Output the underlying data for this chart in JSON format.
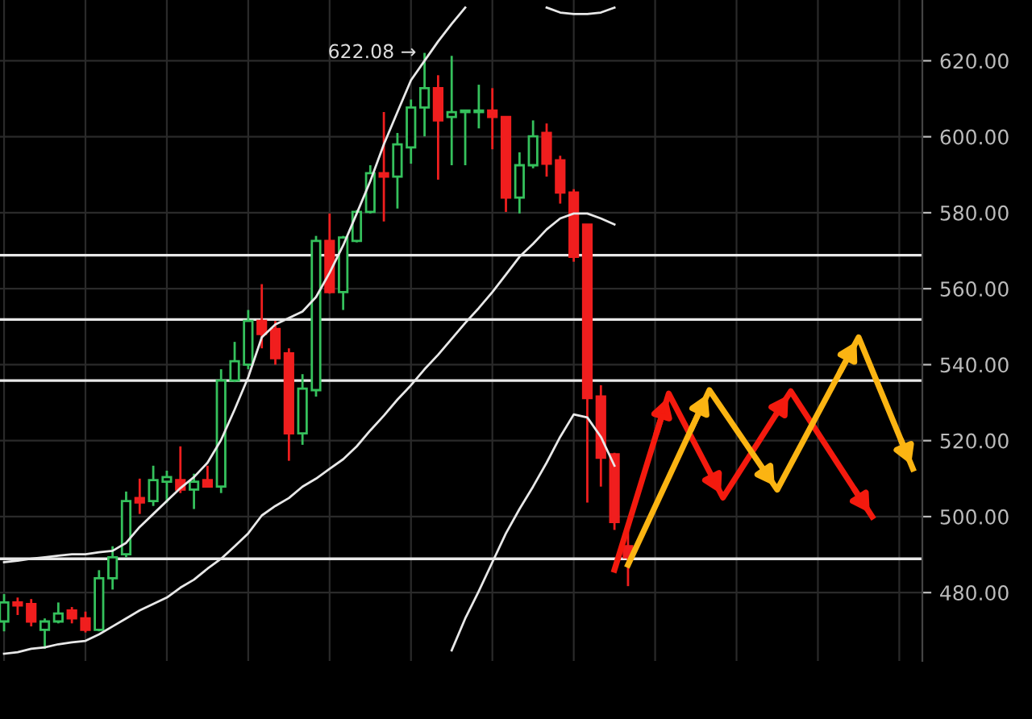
{
  "chart_data": {
    "type": "candlestick",
    "categories": [
      null,
      null,
      null,
      null,
      null,
      null,
      null,
      null,
      null,
      null,
      null,
      null,
      null,
      null,
      null,
      null,
      null,
      null,
      null,
      null,
      null,
      null,
      null,
      null,
      null,
      null,
      null,
      null,
      null,
      null,
      null,
      null,
      null,
      null,
      null,
      null,
      null,
      null,
      null,
      null,
      null,
      null,
      null,
      null,
      null,
      null,
      null,
      null,
      null,
      null,
      null,
      null,
      null,
      null,
      null,
      null,
      null,
      null,
      null,
      null,
      null,
      null,
      null,
      null,
      null,
      null,
      null,
      null,
      null
    ],
    "ohlc": [
      [
        472.4,
        479.6,
        469.8,
        477.4
      ],
      [
        477.4,
        478.7,
        474.1,
        476.6
      ],
      [
        477.0,
        478.3,
        471.1,
        472.4
      ],
      [
        470.2,
        473.2,
        465.2,
        472.4
      ],
      [
        472.4,
        477.4,
        471.9,
        474.5
      ],
      [
        475.3,
        476.2,
        471.9,
        473.2
      ],
      [
        473.2,
        475.0,
        469.5,
        470.2
      ],
      [
        470.2,
        485.9,
        469.8,
        483.8
      ],
      [
        483.8,
        492.2,
        480.8,
        489.3
      ],
      [
        490.1,
        506.6,
        489.3,
        504.1
      ],
      [
        504.9,
        510.0,
        500.7,
        503.7
      ],
      [
        504.1,
        513.4,
        502.8,
        509.6
      ],
      [
        509.2,
        512.1,
        503.7,
        510.4
      ],
      [
        509.6,
        518.5,
        506.2,
        507.1
      ],
      [
        507.1,
        511.3,
        502.0,
        509.2
      ],
      [
        509.6,
        513.4,
        507.9,
        507.9
      ],
      [
        507.9,
        538.8,
        506.2,
        535.8
      ],
      [
        535.8,
        546.0,
        535.4,
        540.9
      ],
      [
        540.0,
        554.4,
        538.8,
        551.5
      ],
      [
        551.5,
        561.2,
        544.3,
        548.1
      ],
      [
        549.4,
        551.5,
        540.0,
        541.7
      ],
      [
        543.0,
        544.3,
        514.7,
        521.9
      ],
      [
        521.9,
        537.5,
        518.9,
        533.7
      ],
      [
        533.3,
        573.9,
        531.6,
        572.6
      ],
      [
        572.6,
        579.8,
        558.7,
        559.1
      ],
      [
        559.1,
        573.9,
        554.4,
        573.5
      ],
      [
        572.6,
        580.7,
        572.2,
        580.2
      ],
      [
        580.2,
        592.5,
        579.8,
        590.4
      ],
      [
        590.4,
        606.5,
        577.7,
        589.5
      ],
      [
        589.5,
        601.0,
        581.1,
        598.0
      ],
      [
        597.2,
        609.8,
        592.9,
        607.7
      ],
      [
        607.7,
        622.08,
        600.1,
        612.8
      ],
      [
        612.8,
        616.2,
        588.7,
        604.3
      ],
      [
        605.2,
        621.3,
        592.5,
        606.5
      ],
      [
        606.5,
        606.9,
        592.5,
        606.9
      ],
      [
        606.5,
        613.7,
        602.2,
        606.9
      ],
      [
        606.9,
        612.8,
        596.7,
        605.2
      ],
      [
        605.2,
        605.2,
        580.2,
        584.0
      ],
      [
        584.0,
        595.9,
        579.8,
        592.5
      ],
      [
        592.5,
        604.3,
        591.7,
        600.1
      ],
      [
        601.0,
        603.5,
        589.5,
        592.9
      ],
      [
        593.8,
        595.0,
        582.4,
        585.3
      ],
      [
        585.3,
        586.2,
        567.1,
        568.4
      ],
      [
        576.9,
        576.9,
        503.7,
        531.2
      ],
      [
        531.6,
        534.6,
        507.9,
        515.5
      ],
      [
        516.4,
        516.8,
        496.5,
        498.6
      ],
      [
        492.2,
        497.0,
        481.7,
        489.3
      ],
      null,
      null,
      null,
      null,
      null,
      null,
      null,
      null,
      null,
      null,
      null,
      null,
      null,
      null,
      null,
      null,
      null,
      null,
      null,
      null,
      null,
      null
    ],
    "colors": [
      "#35c15c",
      "#f01e1e",
      "#f01e1e",
      "#35c15c",
      "#35c15c",
      "#f01e1e",
      "#f01e1e",
      "#35c15c",
      "#35c15c",
      "#35c15c",
      "#f01e1e",
      "#35c15c",
      "#35c15c",
      "#f01e1e",
      "#35c15c",
      "#f01e1e",
      "#35c15c",
      "#35c15c",
      "#35c15c",
      "#f01e1e",
      "#f01e1e",
      "#f01e1e",
      "#35c15c",
      "#35c15c",
      "#f01e1e",
      "#35c15c",
      "#35c15c",
      "#35c15c",
      "#f01e1e",
      "#35c15c",
      "#35c15c",
      "#35c15c",
      "#f01e1e",
      "#35c15c",
      "#35c15c",
      "#35c15c",
      "#f01e1e",
      "#f01e1e",
      "#35c15c",
      "#35c15c",
      "#f01e1e",
      "#f01e1e",
      "#f01e1e",
      "#f01e1e",
      "#f01e1e",
      "#f01e1e",
      "#f01e1e",
      null,
      null,
      null,
      null,
      null,
      null,
      null,
      null,
      null,
      null,
      null,
      null,
      null,
      null,
      null,
      null,
      null,
      null,
      null,
      null,
      null,
      null
    ],
    "series": [
      {
        "type": "line",
        "color": "#e8e8e8",
        "values": [
          488.0,
          488.4,
          488.9,
          489.3,
          489.7,
          490.1,
          490.1,
          490.6,
          491.0,
          493.1,
          497.3,
          500.7,
          504.1,
          507.5,
          510.4,
          514.2,
          520.2,
          528.2,
          536.7,
          547.2,
          550.6,
          552.3,
          554.0,
          557.8,
          564.2,
          571.4,
          579.8,
          588.3,
          598.0,
          606.5,
          614.9,
          620.0,
          625.1,
          629.7,
          634.0,
          null,
          null,
          null,
          null,
          null,
          634.0,
          632.7,
          632.3,
          632.3,
          632.7,
          634.0,
          null,
          null,
          null,
          null,
          null,
          null,
          null,
          null,
          null,
          null,
          null,
          null,
          null,
          null,
          null,
          null,
          null,
          null,
          null,
          null,
          null,
          null,
          null
        ]
      },
      {
        "type": "line",
        "color": "#e8e8e8",
        "values": [
          463.9,
          464.3,
          465.2,
          465.6,
          466.4,
          466.9,
          467.3,
          469.0,
          471.1,
          473.2,
          475.3,
          477.0,
          478.7,
          481.3,
          483.4,
          486.3,
          488.9,
          492.2,
          495.6,
          500.3,
          502.8,
          504.9,
          507.9,
          510.0,
          512.6,
          515.1,
          518.5,
          522.7,
          526.6,
          530.8,
          534.6,
          538.8,
          542.6,
          546.8,
          551.0,
          554.9,
          559.1,
          563.7,
          568.4,
          571.8,
          575.6,
          578.5,
          579.8,
          579.8,
          578.5,
          576.9,
          null,
          null,
          null,
          null,
          null,
          null,
          null,
          null,
          null,
          null,
          null,
          null,
          null,
          null,
          null,
          null,
          null,
          null,
          null,
          null,
          null,
          null,
          null
        ]
      },
      {
        "type": "line",
        "color": "#e8e8e8",
        "values": [
          null,
          null,
          null,
          null,
          null,
          null,
          null,
          null,
          null,
          null,
          null,
          null,
          null,
          null,
          null,
          null,
          null,
          null,
          null,
          null,
          null,
          null,
          null,
          null,
          null,
          null,
          null,
          null,
          null,
          null,
          null,
          null,
          null,
          464.8,
          473.2,
          480.4,
          488.0,
          495.6,
          502.0,
          507.9,
          514.2,
          521.0,
          526.9,
          526.1,
          521.0,
          513.4,
          null,
          null,
          null,
          null,
          null,
          null,
          null,
          null,
          null,
          null,
          null,
          null,
          null,
          null,
          null,
          null,
          null,
          null,
          null,
          null,
          null,
          null,
          null
        ]
      },
      {
        "type": "line",
        "color": "#f41a0e",
        "values": [
          null,
          null,
          null,
          null,
          null,
          null,
          null,
          null,
          null,
          null,
          null,
          null,
          null,
          null,
          null,
          null,
          null,
          null,
          null,
          null,
          null,
          null,
          null,
          null,
          null,
          null,
          null,
          null,
          null,
          null,
          null,
          null,
          null,
          null,
          null,
          null,
          null,
          null,
          null,
          null,
          null,
          null,
          null,
          null,
          null,
          486.0,
          null,
          null,
          null,
          532.4,
          null,
          null,
          null,
          505.0,
          null,
          null,
          null,
          null,
          533.0,
          null,
          null,
          null,
          null,
          null,
          500.0,
          null,
          null,
          null,
          null
        ]
      },
      {
        "type": "line",
        "color": "#fbb412",
        "values": [
          null,
          null,
          null,
          null,
          null,
          null,
          null,
          null,
          null,
          null,
          null,
          null,
          null,
          null,
          null,
          null,
          null,
          null,
          null,
          null,
          null,
          null,
          null,
          null,
          null,
          null,
          null,
          null,
          null,
          null,
          null,
          null,
          null,
          null,
          null,
          null,
          null,
          null,
          null,
          null,
          null,
          null,
          null,
          null,
          null,
          null,
          487.3,
          null,
          null,
          null,
          null,
          null,
          533.3,
          null,
          null,
          null,
          null,
          507.1,
          null,
          null,
          null,
          null,
          null,
          547.2,
          null,
          null,
          null,
          512.6,
          null
        ]
      }
    ],
    "ref_lines": [
      {
        "axis": "y",
        "value": 568.8,
        "color": "#e8e8e8"
      },
      {
        "axis": "y",
        "value": 551.9,
        "color": "#e8e8e8"
      },
      {
        "axis": "y",
        "value": 535.8,
        "color": "#e8e8e8"
      },
      {
        "axis": "y",
        "value": 488.9,
        "color": "#e8e8e8"
      }
    ],
    "annotations": [
      "622.08 →"
    ],
    "ylim": [
      462,
      636
    ],
    "yticks": [
      {
        "value": 480,
        "label": "480.00"
      },
      {
        "value": 500,
        "label": "500.00"
      },
      {
        "value": 520,
        "label": "520.00"
      },
      {
        "value": 540,
        "label": "540.00"
      },
      {
        "value": 560,
        "label": "560.00"
      },
      {
        "value": 580,
        "label": "580.00"
      },
      {
        "value": 600,
        "label": "600.00"
      },
      {
        "value": 620,
        "label": "620.00"
      }
    ],
    "tick_labels": "y",
    "grid": true
  }
}
